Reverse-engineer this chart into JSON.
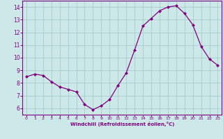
{
  "x": [
    0,
    1,
    2,
    3,
    4,
    5,
    6,
    7,
    8,
    9,
    10,
    11,
    12,
    13,
    14,
    15,
    16,
    17,
    18,
    19,
    20,
    21,
    22,
    23
  ],
  "y": [
    8.5,
    8.7,
    8.6,
    8.1,
    7.7,
    7.5,
    7.3,
    6.3,
    5.9,
    6.2,
    6.7,
    7.8,
    8.8,
    10.6,
    12.5,
    13.1,
    13.7,
    14.0,
    14.1,
    13.5,
    12.6,
    10.9,
    9.9,
    9.4
  ],
  "line_color": "#800080",
  "marker": "D",
  "marker_size": 2.0,
  "bg_color": "#cce8e8",
  "grid_color": "#aacccc",
  "xlabel": "Windchill (Refroidissement éolien,°C)",
  "tick_color": "#800080",
  "ylim": [
    5.5,
    14.5
  ],
  "xlim": [
    -0.5,
    23.5
  ],
  "yticks": [
    6,
    7,
    8,
    9,
    10,
    11,
    12,
    13,
    14
  ],
  "xticks": [
    0,
    1,
    2,
    3,
    4,
    5,
    6,
    7,
    8,
    9,
    10,
    11,
    12,
    13,
    14,
    15,
    16,
    17,
    18,
    19,
    20,
    21,
    22,
    23
  ]
}
